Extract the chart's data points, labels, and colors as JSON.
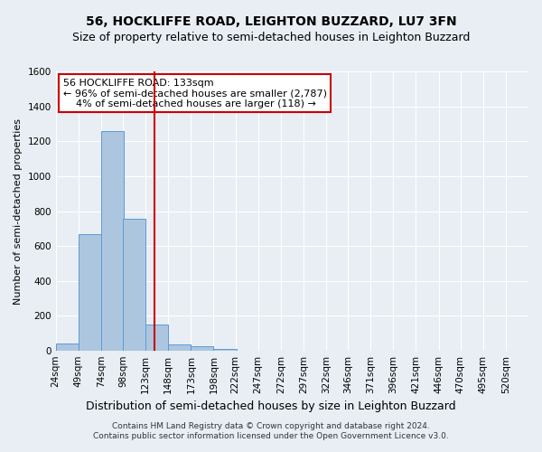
{
  "title": "56, HOCKLIFFE ROAD, LEIGHTON BUZZARD, LU7 3FN",
  "subtitle": "Size of property relative to semi-detached houses in Leighton Buzzard",
  "xlabel": "Distribution of semi-detached houses by size in Leighton Buzzard",
  "ylabel": "Number of semi-detached properties",
  "footnote1": "Contains HM Land Registry data © Crown copyright and database right 2024.",
  "footnote2": "Contains public sector information licensed under the Open Government Licence v3.0.",
  "bar_categories": [
    "24sqm",
    "49sqm",
    "74sqm",
    "98sqm",
    "123sqm",
    "148sqm",
    "173sqm",
    "198sqm",
    "222sqm",
    "247sqm",
    "272sqm",
    "297sqm",
    "322sqm",
    "346sqm",
    "371sqm",
    "396sqm",
    "421sqm",
    "446sqm",
    "470sqm",
    "495sqm",
    "520sqm"
  ],
  "bar_values": [
    40,
    670,
    1260,
    755,
    150,
    35,
    25,
    12,
    0,
    0,
    0,
    0,
    0,
    0,
    0,
    0,
    0,
    0,
    0,
    0,
    0
  ],
  "bar_color": "#adc6e0",
  "bar_edge_color": "#5b9bd5",
  "background_color": "#e8eef4",
  "grid_color": "#ffffff",
  "vline_x": 133,
  "vline_color": "#cc0000",
  "annotation_line1": "56 HOCKLIFFE ROAD: 133sqm",
  "annotation_line2": "← 96% of semi-detached houses are smaller (2,787)",
  "annotation_line3": "    4% of semi-detached houses are larger (118) →",
  "annotation_box_color": "#cc0000",
  "annotation_box_bg": "#ffffff",
  "ylim": [
    0,
    1600
  ],
  "yticks": [
    0,
    200,
    400,
    600,
    800,
    1000,
    1200,
    1400,
    1600
  ],
  "bin_width": 25,
  "property_size": 133,
  "title_fontsize": 10,
  "subtitle_fontsize": 9,
  "xlabel_fontsize": 9,
  "ylabel_fontsize": 8,
  "tick_fontsize": 7.5,
  "annotation_fontsize": 8,
  "footnote_fontsize": 6.5
}
